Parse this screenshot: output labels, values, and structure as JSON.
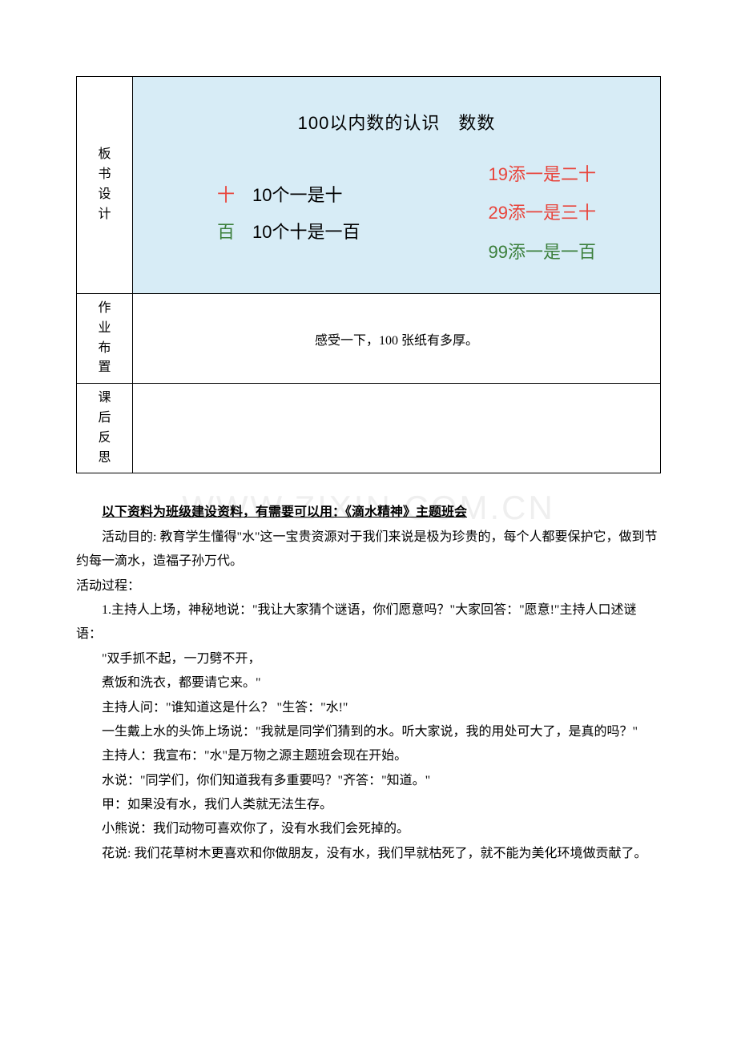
{
  "watermark": "WWW.ZIXIN.COM.CN",
  "plan": {
    "rows": {
      "board": "板书设计",
      "homework": "作业布置",
      "reflect": "课后反思"
    },
    "board": {
      "title": "100以内数的认识　数数",
      "left": {
        "line1_char": "十",
        "line1_text": "10个一是十",
        "line2_char": "百",
        "line2_text": "10个十是一百"
      },
      "right": {
        "line1": "19添一是二十",
        "line2": "29添一是三十",
        "line3": "99添一是一百"
      },
      "colors": {
        "bg": "#d7ecf6",
        "red": "#e8453c",
        "green": "#3b7f3b",
        "black": "#000000"
      }
    },
    "homework": "感受一下，100 张纸有多厚。"
  },
  "article": {
    "heading": "以下资料为班级建设资料，有需要可以用：《滴水精神》主题班会",
    "p1": "活动目的: 教育学生懂得\"水\"这一宝贵资源对于我们来说是极为珍贵的，每个人都要保护它，做到节约每一滴水，造福子孙万代。",
    "p2": "活动过程：",
    "p3": "1.主持人上场，神秘地说：\"我让大家猜个谜语，你们愿意吗？\"大家回答：\"愿意!\"主持人口述谜语：",
    "p4": "\"双手抓不起，一刀劈不开，",
    "p5": "煮饭和洗衣，都要请它来。\"",
    "p6": "主持人问：\"谁知道这是什么？ \"生答：\"水!\"",
    "p7": "一生戴上水的头饰上场说：\"我就是同学们猜到的水。听大家说，我的用处可大了，是真的吗？\"",
    "p8": "主持人：我宣布：\"水\"是万物之源主题班会现在开始。",
    "p9": "水说：\"同学们，你们知道我有多重要吗？\"齐答：\"知道。\"",
    "p10": "甲：如果没有水，我们人类就无法生存。",
    "p11": "小熊说：我们动物可喜欢你了，没有水我们会死掉的。",
    "p12": "花说: 我们花草树木更喜欢和你做朋友，没有水，我们早就枯死了，就不能为美化环境做贡献了。"
  }
}
